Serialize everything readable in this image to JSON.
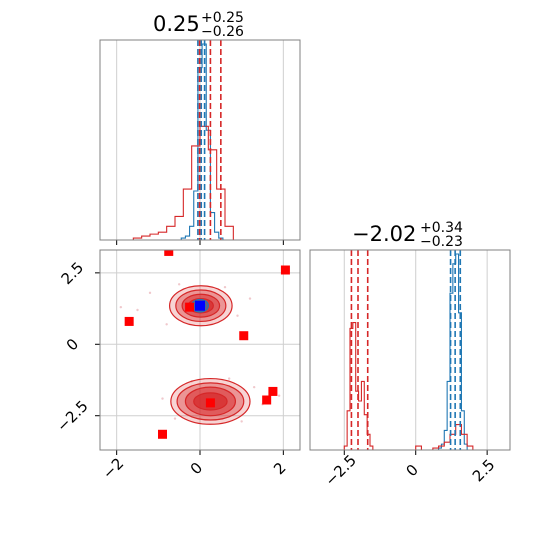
{
  "chart_data": [
    {
      "type": "histogram",
      "panel": "top-left",
      "title": {
        "value": "0.25",
        "plus": "+0.25",
        "minus": "−0.26"
      },
      "xlim": [
        -2.4,
        2.4
      ],
      "x_ticks": [
        -2,
        0,
        2
      ],
      "grid": true,
      "quantile_lines": {
        "blue": [
          -0.05,
          0.03,
          0.11
        ],
        "red": [
          -0.01,
          0.25,
          0.5
        ]
      },
      "series": [
        {
          "color": "#1f77b4",
          "bin_edges": [
            -0.75,
            -0.65,
            -0.55,
            -0.45,
            -0.35,
            -0.25,
            -0.15,
            -0.05,
            0.05,
            0.15,
            0.25,
            0.35,
            0.45,
            0.55,
            0.65
          ],
          "density": [
            0.0,
            0.0,
            0.0,
            0.01,
            0.02,
            0.07,
            0.25,
            0.88,
            1.0,
            0.56,
            0.14,
            0.04,
            0.01,
            0.0
          ]
        },
        {
          "color": "#d62728",
          "bin_edges": [
            -1.6,
            -1.4,
            -1.2,
            -1.0,
            -0.8,
            -0.6,
            -0.4,
            -0.2,
            0.0,
            0.2,
            0.4,
            0.6,
            0.8
          ],
          "density": [
            0.01,
            0.02,
            0.03,
            0.04,
            0.07,
            0.12,
            0.26,
            0.48,
            0.58,
            0.46,
            0.26,
            0.07
          ]
        }
      ]
    },
    {
      "type": "scatter",
      "panel": "bottom-left",
      "xlim": [
        -2.4,
        2.4
      ],
      "ylim": [
        -3.7,
        3.3
      ],
      "x_ticks": [
        -2,
        0,
        2
      ],
      "y_ticks": [
        -2.5,
        0.0,
        2.5
      ],
      "grid": true,
      "blue_square": {
        "x": 0.0,
        "y": 1.35
      },
      "red_squares": [
        {
          "x": -1.7,
          "y": 0.8
        },
        {
          "x": -0.75,
          "y": 3.25
        },
        {
          "x": -0.25,
          "y": 1.3
        },
        {
          "x": 0.25,
          "y": -2.05
        },
        {
          "x": 1.05,
          "y": 0.3
        },
        {
          "x": 1.6,
          "y": -1.95
        },
        {
          "x": 1.75,
          "y": -1.65
        },
        {
          "x": -0.9,
          "y": -3.15
        },
        {
          "x": 2.05,
          "y": 2.6
        }
      ],
      "contours": [
        {
          "color": "#d62728",
          "cx": 0.02,
          "cy": 1.35,
          "rx": [
            0.75,
            0.6,
            0.45,
            0.3
          ],
          "ry": [
            0.7,
            0.55,
            0.4,
            0.25
          ]
        },
        {
          "color": "#d62728",
          "cx": 0.25,
          "cy": -2.0,
          "rx": [
            0.95,
            0.8,
            0.6,
            0.4
          ],
          "ry": [
            0.8,
            0.65,
            0.5,
            0.3
          ]
        },
        {
          "color": "#1f77b4",
          "cx": 0.0,
          "cy": 1.35,
          "rx": [
            0.2,
            0.13
          ],
          "ry": [
            0.22,
            0.15
          ]
        }
      ]
    },
    {
      "type": "histogram",
      "panel": "bottom-right",
      "title": {
        "value": "−2.02",
        "plus": "+0.34",
        "minus": "−0.23"
      },
      "xlim": [
        -3.7,
        3.3
      ],
      "x_ticks": [
        -2.5,
        0.0,
        2.5
      ],
      "grid": true,
      "quantile_lines": {
        "blue": [
          1.22,
          1.38,
          1.56
        ],
        "red": [
          -2.25,
          -2.02,
          -1.68
        ]
      },
      "series": [
        {
          "color": "#1f77b4",
          "bin_edges": [
            0.8,
            0.9,
            1.0,
            1.1,
            1.2,
            1.3,
            1.4,
            1.5,
            1.6,
            1.7,
            1.8
          ],
          "density": [
            0.01,
            0.03,
            0.1,
            0.35,
            0.8,
            0.95,
            1.0,
            0.7,
            0.2,
            0.03
          ]
        },
        {
          "color": "#d62728",
          "bin_edges": [
            -2.5,
            -2.4,
            -2.3,
            -2.2,
            -2.1,
            -2.0,
            -1.9,
            -1.8,
            -1.7,
            -1.6,
            -1.5
          ],
          "density": [
            0.02,
            0.2,
            0.62,
            0.65,
            0.3,
            0.25,
            0.35,
            0.18,
            0.08,
            0.02
          ]
        },
        {
          "color": "#d62728",
          "bin_edges": [
            -0.2,
            0.0,
            0.2,
            0.4,
            0.6,
            0.8,
            1.0,
            1.2,
            1.4,
            1.6,
            1.8,
            2.0
          ],
          "density": [
            0.0,
            0.02,
            0.0,
            0.0,
            0.01,
            0.02,
            0.04,
            0.08,
            0.13,
            0.08,
            0.02
          ]
        }
      ]
    }
  ]
}
